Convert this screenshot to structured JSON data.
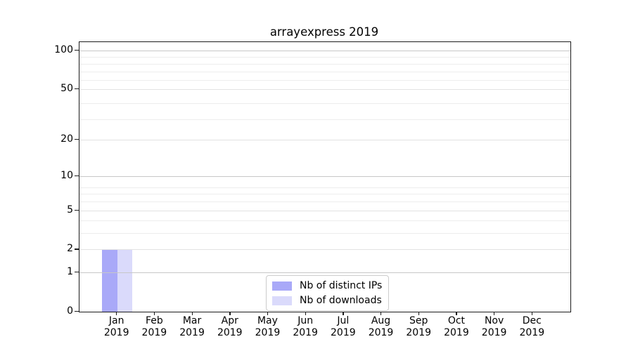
{
  "chart_data": {
    "type": "bar",
    "title": "arrayexpress 2019",
    "months": [
      "Jan",
      "Feb",
      "Mar",
      "Apr",
      "May",
      "Jun",
      "Jul",
      "Aug",
      "Sep",
      "Oct",
      "Nov",
      "Dec"
    ],
    "year_label": "2019",
    "series": [
      {
        "name": "Nb of distinct IPs",
        "color": "#a9a9f8",
        "values": [
          2,
          0,
          0,
          0,
          0,
          0,
          0,
          0,
          0,
          0,
          0,
          0
        ]
      },
      {
        "name": "Nb of downloads",
        "color": "#dadafb",
        "values": [
          2,
          0,
          0,
          0,
          0,
          0,
          0,
          0,
          0,
          0,
          0,
          0
        ]
      }
    ],
    "y_scale": "log1p",
    "y_ticks": [
      0,
      1,
      2,
      5,
      10,
      20,
      50,
      100
    ],
    "y_ticks_emphasized": [
      1,
      10,
      100
    ],
    "ylim": [
      0,
      100
    ],
    "xlabel": "",
    "ylabel": "",
    "grid": true,
    "legend_position": "lower center"
  }
}
